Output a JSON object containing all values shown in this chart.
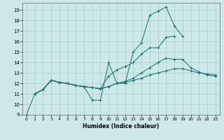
{
  "bg_color": "#cce8e8",
  "grid_color": "#aacccc",
  "line_color": "#1a6e6e",
  "xlabel": "Humidex (Indice chaleur)",
  "xlim": [
    -0.5,
    23.5
  ],
  "ylim": [
    9,
    19.7
  ],
  "xticks": [
    0,
    1,
    2,
    3,
    4,
    5,
    6,
    7,
    8,
    9,
    10,
    11,
    12,
    13,
    14,
    15,
    16,
    17,
    18,
    19,
    20,
    21,
    22,
    23
  ],
  "yticks": [
    9,
    10,
    11,
    12,
    13,
    14,
    15,
    16,
    17,
    18,
    19
  ],
  "lines": [
    {
      "x": [
        0,
        1,
        2,
        3,
        4,
        5,
        6,
        7,
        8,
        9,
        10,
        11,
        12,
        13,
        14,
        15,
        16,
        17,
        18,
        19
      ],
      "y": [
        9,
        11,
        11.4,
        12.3,
        12.1,
        12,
        11.8,
        11.7,
        10.4,
        10.4,
        14,
        12,
        12,
        15,
        15.9,
        18.5,
        18.9,
        19.3,
        17.5,
        16.5
      ]
    },
    {
      "x": [
        1,
        2,
        3,
        4,
        5,
        6,
        7,
        8,
        9,
        10,
        11,
        12,
        13,
        14,
        15,
        16,
        17,
        18
      ],
      "y": [
        11,
        11.4,
        12.3,
        12.1,
        12,
        11.8,
        11.7,
        11.6,
        11.5,
        12.7,
        13.3,
        13.6,
        14.0,
        14.8,
        15.4,
        15.4,
        16.4,
        16.5
      ]
    },
    {
      "x": [
        1,
        2,
        3,
        4,
        5,
        6,
        7,
        8,
        9,
        10,
        11,
        12,
        13,
        14,
        15,
        16,
        17,
        18,
        19,
        20,
        21,
        22,
        23
      ],
      "y": [
        11,
        11.4,
        12.3,
        12.1,
        12,
        11.8,
        11.7,
        11.6,
        11.5,
        11.7,
        12,
        12.2,
        12.5,
        13.0,
        13.5,
        14.0,
        14.4,
        14.3,
        14.3,
        13.5,
        13.1,
        12.8,
        12.7
      ]
    },
    {
      "x": [
        1,
        2,
        3,
        4,
        5,
        6,
        7,
        8,
        9,
        10,
        11,
        12,
        13,
        14,
        15,
        16,
        17,
        18,
        19,
        20,
        21,
        22,
        23
      ],
      "y": [
        11,
        11.4,
        12.3,
        12.1,
        12,
        11.8,
        11.7,
        11.6,
        11.5,
        11.7,
        12.0,
        12.1,
        12.3,
        12.5,
        12.8,
        13.0,
        13.2,
        13.4,
        13.4,
        13.2,
        13.0,
        12.9,
        12.8
      ]
    }
  ]
}
